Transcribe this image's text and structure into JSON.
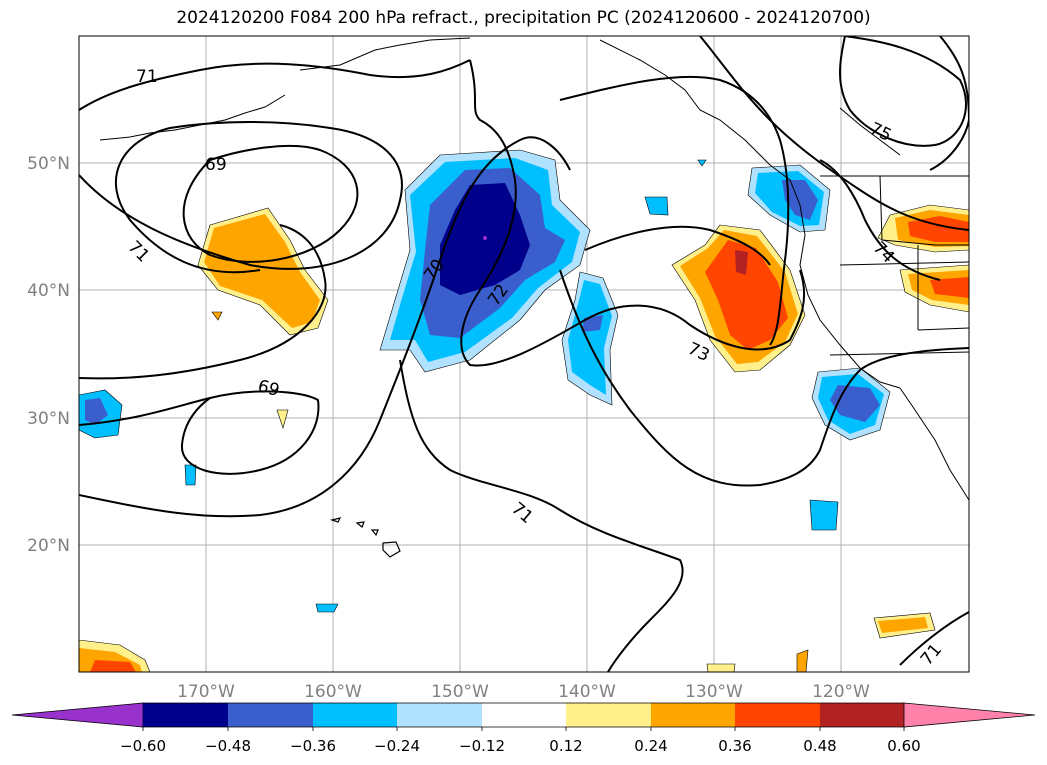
{
  "title": "2024120200 F084 200 hPa refract., precipitation PC (2024120600 - 2024120700)",
  "map": {
    "lat_labels": [
      "50°N",
      "40°N",
      "30°N",
      "20°N"
    ],
    "lon_labels": [
      "170°W",
      "160°W",
      "150°W",
      "140°W",
      "130°W",
      "120°W"
    ],
    "contour_labels": [
      "71",
      "69",
      "71",
      "70",
      "72",
      "69",
      "73",
      "71",
      "75",
      "74",
      "71"
    ]
  },
  "colorbar": {
    "ticks": [
      "−0.60",
      "−0.48",
      "−0.36",
      "−0.24",
      "−0.12",
      "0.12",
      "0.24",
      "0.36",
      "0.48",
      "0.60"
    ],
    "colors": [
      "#9932cc",
      "#00008b",
      "#3a5fcd",
      "#00bfff",
      "#b0e2ff",
      "#ffffff",
      "#fff08c",
      "#ffa500",
      "#ff4500",
      "#b22222",
      "#ff82ab"
    ]
  }
}
